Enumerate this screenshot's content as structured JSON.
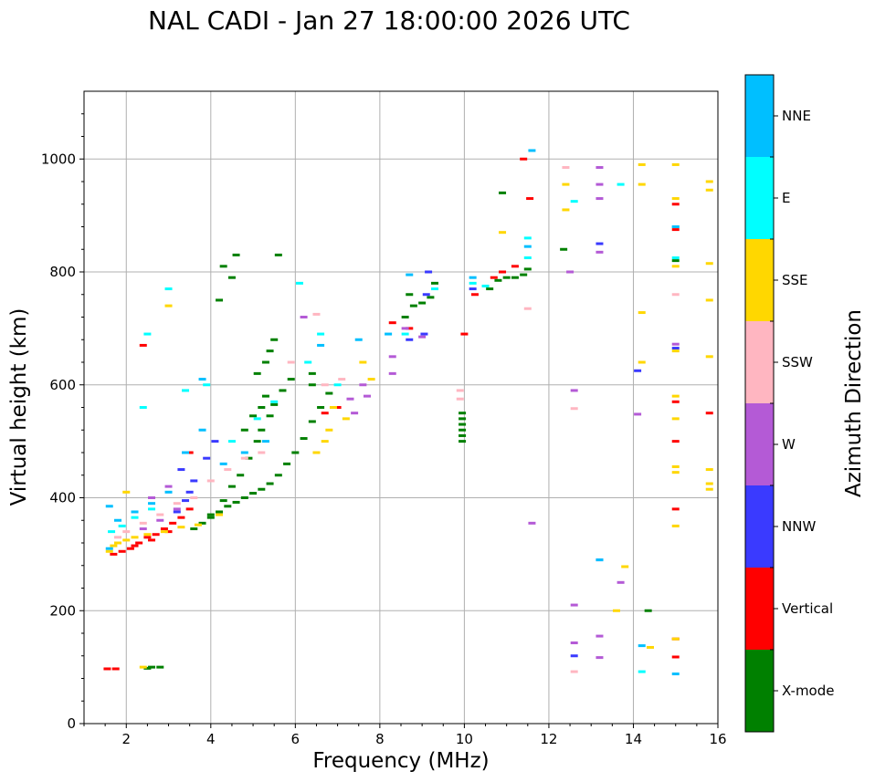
{
  "chart_data": {
    "type": "scatter",
    "title": "NAL CADI - Jan 27 18:00:00 2026 UTC",
    "xlabel": "Frequency (MHz)",
    "ylabel": "Virtual height (km)",
    "xlim": [
      1,
      16
    ],
    "ylim": [
      0,
      1120
    ],
    "xticks": [
      2,
      4,
      6,
      8,
      10,
      12,
      14,
      16
    ],
    "yticks": [
      0,
      200,
      400,
      600,
      800,
      1000
    ],
    "grid": true,
    "colorbar": {
      "label": "Azimuth Direction",
      "categories": [
        {
          "name": "X-mode",
          "color": "#008000"
        },
        {
          "name": "Vertical",
          "color": "#ff0000"
        },
        {
          "name": "NNW",
          "color": "#3a3aff"
        },
        {
          "name": "W",
          "color": "#b45ad6"
        },
        {
          "name": "SSW",
          "color": "#ffb6c1"
        },
        {
          "name": "SSE",
          "color": "#ffd700"
        },
        {
          "name": "E",
          "color": "#00ffff"
        },
        {
          "name": "NNE",
          "color": "#00bfff"
        }
      ]
    },
    "series": [
      {
        "name": "X-mode",
        "points": [
          [
            3.6,
            345
          ],
          [
            3.8,
            355
          ],
          [
            4.0,
            365
          ],
          [
            4.2,
            375
          ],
          [
            4.4,
            385
          ],
          [
            4.6,
            392
          ],
          [
            4.8,
            400
          ],
          [
            5.0,
            408
          ],
          [
            5.2,
            415
          ],
          [
            5.4,
            425
          ],
          [
            5.6,
            440
          ],
          [
            5.8,
            460
          ],
          [
            6.0,
            480
          ],
          [
            6.2,
            505
          ],
          [
            6.4,
            535
          ],
          [
            6.6,
            560
          ],
          [
            6.8,
            585
          ],
          [
            4.0,
            370
          ],
          [
            4.3,
            395
          ],
          [
            4.5,
            420
          ],
          [
            4.7,
            440
          ],
          [
            4.9,
            470
          ],
          [
            5.1,
            500
          ],
          [
            5.2,
            520
          ],
          [
            5.4,
            545
          ],
          [
            5.5,
            565
          ],
          [
            5.7,
            590
          ],
          [
            5.9,
            610
          ],
          [
            4.8,
            520
          ],
          [
            5.0,
            545
          ],
          [
            5.2,
            560
          ],
          [
            5.3,
            580
          ],
          [
            5.1,
            620
          ],
          [
            5.3,
            640
          ],
          [
            5.4,
            660
          ],
          [
            5.5,
            680
          ],
          [
            2.6,
            100
          ],
          [
            2.8,
            100
          ],
          [
            2.5,
            98
          ],
          [
            8.6,
            720
          ],
          [
            8.8,
            740
          ],
          [
            9.0,
            745
          ],
          [
            9.2,
            755
          ],
          [
            8.7,
            760
          ],
          [
            9.3,
            780
          ],
          [
            10.6,
            770
          ],
          [
            10.8,
            785
          ],
          [
            11.0,
            790
          ],
          [
            11.2,
            790
          ],
          [
            11.4,
            795
          ],
          [
            11.5,
            805
          ],
          [
            9.95,
            500
          ],
          [
            9.95,
            510
          ],
          [
            9.95,
            520
          ],
          [
            9.95,
            530
          ],
          [
            9.95,
            540
          ],
          [
            9.95,
            550
          ],
          [
            12.35,
            840
          ],
          [
            14.35,
            200
          ],
          [
            15.0,
            820
          ],
          [
            10.9,
            940
          ],
          [
            6.4,
            600
          ],
          [
            6.4,
            620
          ],
          [
            4.2,
            750
          ],
          [
            4.3,
            810
          ],
          [
            4.6,
            830
          ],
          [
            5.6,
            830
          ],
          [
            4.5,
            790
          ]
        ]
      },
      {
        "name": "Vertical",
        "points": [
          [
            1.7,
            300
          ],
          [
            1.9,
            305
          ],
          [
            2.1,
            310
          ],
          [
            2.3,
            320
          ],
          [
            2.5,
            330
          ],
          [
            2.7,
            335
          ],
          [
            2.9,
            345
          ],
          [
            3.1,
            355
          ],
          [
            3.3,
            365
          ],
          [
            3.5,
            380
          ],
          [
            2.2,
            315
          ],
          [
            2.6,
            325
          ],
          [
            3.0,
            340
          ],
          [
            1.55,
            97
          ],
          [
            1.75,
            97
          ],
          [
            2.4,
            670
          ],
          [
            3.5,
            480
          ],
          [
            6.7,
            550
          ],
          [
            7.0,
            560
          ],
          [
            8.3,
            710
          ],
          [
            8.7,
            700
          ],
          [
            10.0,
            690
          ],
          [
            10.25,
            760
          ],
          [
            10.7,
            790
          ],
          [
            10.9,
            800
          ],
          [
            11.2,
            810
          ],
          [
            11.4,
            1000
          ],
          [
            11.55,
            930
          ],
          [
            15.0,
            920
          ],
          [
            15.0,
            875
          ],
          [
            15.0,
            570
          ],
          [
            15.0,
            500
          ],
          [
            15.0,
            380
          ],
          [
            15.0,
            150
          ],
          [
            15.0,
            118
          ],
          [
            15.8,
            550
          ]
        ]
      },
      {
        "name": "NNW",
        "points": [
          [
            3.2,
            375
          ],
          [
            3.4,
            395
          ],
          [
            3.5,
            410
          ],
          [
            3.6,
            430
          ],
          [
            3.3,
            450
          ],
          [
            3.9,
            470
          ],
          [
            4.1,
            500
          ],
          [
            8.7,
            680
          ],
          [
            9.05,
            690
          ],
          [
            9.1,
            760
          ],
          [
            9.15,
            800
          ],
          [
            10.2,
            770
          ],
          [
            13.2,
            850
          ],
          [
            13.2,
            290
          ],
          [
            12.6,
            120
          ],
          [
            14.1,
            625
          ],
          [
            15.0,
            665
          ]
        ]
      },
      {
        "name": "W",
        "points": [
          [
            2.4,
            345
          ],
          [
            2.8,
            360
          ],
          [
            3.2,
            380
          ],
          [
            2.6,
            400
          ],
          [
            3.0,
            420
          ],
          [
            6.2,
            720
          ],
          [
            7.3,
            575
          ],
          [
            7.6,
            600
          ],
          [
            7.7,
            580
          ],
          [
            7.4,
            550
          ],
          [
            8.3,
            650
          ],
          [
            8.3,
            620
          ],
          [
            8.6,
            700
          ],
          [
            9.0,
            685
          ],
          [
            12.5,
            800
          ],
          [
            12.6,
            590
          ],
          [
            12.6,
            210
          ],
          [
            12.6,
            143
          ],
          [
            13.2,
            985
          ],
          [
            13.2,
            955
          ],
          [
            13.2,
            930
          ],
          [
            13.2,
            835
          ],
          [
            13.2,
            155
          ],
          [
            13.2,
            117
          ],
          [
            13.7,
            250
          ],
          [
            14.1,
            548
          ],
          [
            15.0,
            672
          ],
          [
            11.6,
            355
          ]
        ]
      },
      {
        "name": "SSW",
        "points": [
          [
            1.8,
            330
          ],
          [
            2.0,
            340
          ],
          [
            2.4,
            355
          ],
          [
            2.8,
            370
          ],
          [
            3.2,
            390
          ],
          [
            3.6,
            400
          ],
          [
            4.0,
            430
          ],
          [
            4.4,
            450
          ],
          [
            4.8,
            470
          ],
          [
            5.2,
            480
          ],
          [
            5.9,
            640
          ],
          [
            6.5,
            725
          ],
          [
            6.7,
            600
          ],
          [
            7.1,
            610
          ],
          [
            9.9,
            590
          ],
          [
            9.9,
            575
          ],
          [
            12.4,
            985
          ],
          [
            12.6,
            558
          ],
          [
            12.6,
            92
          ],
          [
            15.0,
            760
          ],
          [
            11.5,
            735
          ]
        ]
      },
      {
        "name": "SSE",
        "points": [
          [
            1.6,
            305
          ],
          [
            1.7,
            315
          ],
          [
            1.8,
            320
          ],
          [
            2.0,
            325
          ],
          [
            2.2,
            330
          ],
          [
            2.5,
            335
          ],
          [
            2.9,
            340
          ],
          [
            3.3,
            348
          ],
          [
            3.7,
            352
          ],
          [
            4.2,
            370
          ],
          [
            2.4,
            100
          ],
          [
            2.0,
            410
          ],
          [
            3.0,
            740
          ],
          [
            6.5,
            480
          ],
          [
            6.7,
            500
          ],
          [
            6.8,
            520
          ],
          [
            6.9,
            560
          ],
          [
            7.2,
            540
          ],
          [
            7.6,
            640
          ],
          [
            7.8,
            610
          ],
          [
            10.9,
            870
          ],
          [
            12.4,
            955
          ],
          [
            12.4,
            910
          ],
          [
            13.6,
            200
          ],
          [
            13.8,
            278
          ],
          [
            14.2,
            990
          ],
          [
            14.2,
            955
          ],
          [
            14.2,
            728
          ],
          [
            14.2,
            640
          ],
          [
            14.4,
            135
          ],
          [
            15.0,
            990
          ],
          [
            15.0,
            930
          ],
          [
            15.0,
            810
          ],
          [
            15.0,
            660
          ],
          [
            15.0,
            580
          ],
          [
            15.0,
            540
          ],
          [
            15.0,
            455
          ],
          [
            15.0,
            445
          ],
          [
            15.0,
            350
          ],
          [
            15.0,
            150
          ],
          [
            15.8,
            960
          ],
          [
            15.8,
            945
          ],
          [
            15.8,
            815
          ],
          [
            15.8,
            750
          ],
          [
            15.8,
            650
          ],
          [
            15.8,
            450
          ],
          [
            15.8,
            425
          ],
          [
            15.8,
            415
          ]
        ]
      },
      {
        "name": "E",
        "points": [
          [
            1.65,
            340
          ],
          [
            1.9,
            350
          ],
          [
            2.2,
            365
          ],
          [
            2.6,
            380
          ],
          [
            2.5,
            690
          ],
          [
            3.0,
            770
          ],
          [
            2.4,
            560
          ],
          [
            3.4,
            590
          ],
          [
            3.9,
            600
          ],
          [
            4.5,
            500
          ],
          [
            5.1,
            540
          ],
          [
            5.5,
            570
          ],
          [
            6.3,
            640
          ],
          [
            6.6,
            690
          ],
          [
            6.1,
            780
          ],
          [
            7.0,
            600
          ],
          [
            8.6,
            690
          ],
          [
            9.3,
            770
          ],
          [
            10.2,
            780
          ],
          [
            10.5,
            775
          ],
          [
            11.5,
            860
          ],
          [
            11.5,
            825
          ],
          [
            12.6,
            925
          ],
          [
            13.7,
            955
          ],
          [
            14.2,
            92
          ],
          [
            15.0,
            880
          ],
          [
            15.0,
            825
          ]
        ]
      },
      {
        "name": "NNE",
        "points": [
          [
            1.6,
            385
          ],
          [
            1.6,
            310
          ],
          [
            1.8,
            360
          ],
          [
            2.2,
            375
          ],
          [
            2.6,
            390
          ],
          [
            3.0,
            410
          ],
          [
            3.4,
            480
          ],
          [
            3.8,
            520
          ],
          [
            3.8,
            610
          ],
          [
            4.3,
            460
          ],
          [
            4.8,
            480
          ],
          [
            5.3,
            500
          ],
          [
            6.6,
            670
          ],
          [
            7.5,
            680
          ],
          [
            8.2,
            690
          ],
          [
            8.7,
            795
          ],
          [
            10.2,
            790
          ],
          [
            11.5,
            845
          ],
          [
            11.6,
            1015
          ],
          [
            13.2,
            290
          ],
          [
            14.2,
            138
          ],
          [
            15.0,
            88
          ],
          [
            15.0,
            880
          ]
        ]
      }
    ]
  }
}
